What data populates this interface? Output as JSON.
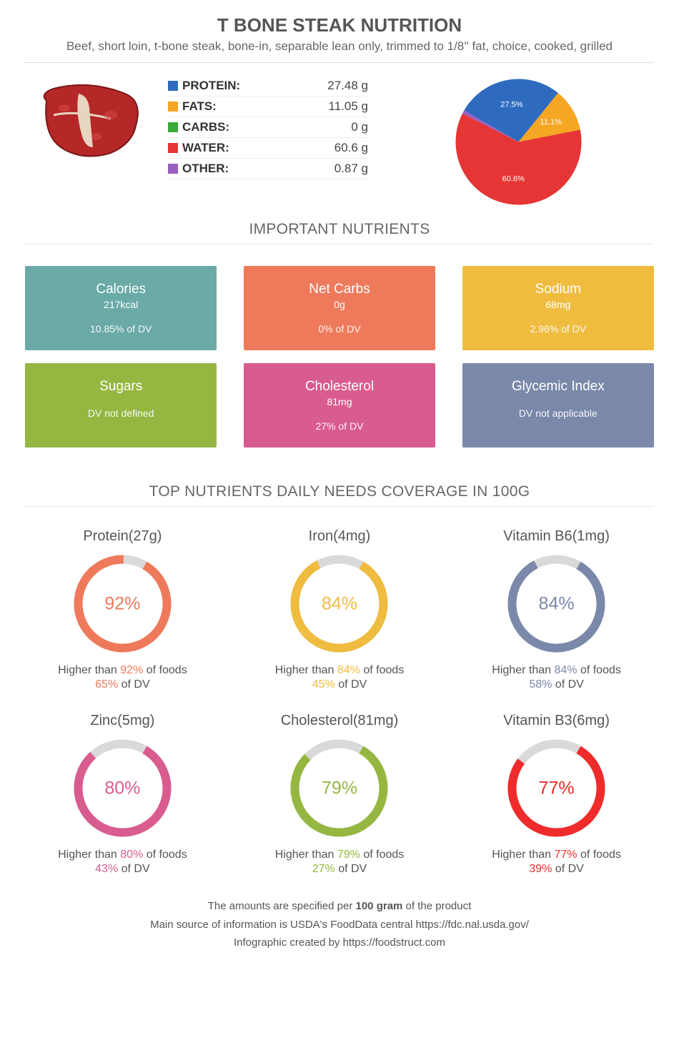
{
  "header": {
    "title": "T BONE STEAK NUTRITION",
    "subtitle": "Beef, short loin, t-bone steak, bone-in, separable lean only, trimmed to 1/8'' fat, choice, cooked, grilled"
  },
  "macros": [
    {
      "label": "PROTEIN:",
      "value": "27.48 g",
      "color": "#2e6bbf",
      "pct": 27.5
    },
    {
      "label": "FATS:",
      "value": "11.05 g",
      "color": "#f5a623",
      "pct": 11.1
    },
    {
      "label": "CARBS:",
      "value": "0 g",
      "color": "#3aa83a",
      "pct": 0
    },
    {
      "label": "WATER:",
      "value": "60.6 g",
      "color": "#e53535",
      "pct": 60.6
    },
    {
      "label": "OTHER:",
      "value": "0.87 g",
      "color": "#9b5fc0",
      "pct": 0.87
    }
  ],
  "pie_labels": [
    {
      "text": "27.5%",
      "color": "#ffffff"
    },
    {
      "text": "11.1%",
      "color": "#ffffff"
    },
    {
      "text": "60.6%",
      "color": "#ffffff"
    }
  ],
  "sections": {
    "important": "IMPORTANT NUTRIENTS",
    "top_nutrients": "TOP NUTRIENTS DAILY NEEDS COVERAGE IN 100G"
  },
  "cards": [
    {
      "title": "Calories",
      "value": "217kcal",
      "dv": "10.85% of DV",
      "color": "#6aaaa7"
    },
    {
      "title": "Net Carbs",
      "value": "0g",
      "dv": "0% of DV",
      "color": "#ee7a5b"
    },
    {
      "title": "Sodium",
      "value": "68mg",
      "dv": "2.96% of DV",
      "color": "#efbc3f"
    },
    {
      "title": "Sugars",
      "value": "",
      "dv": "DV not defined",
      "color": "#95b742"
    },
    {
      "title": "Cholesterol",
      "value": "81mg",
      "dv": "27% of DV",
      "color": "#d95c8f"
    },
    {
      "title": "Glycemic Index",
      "value": "",
      "dv": "DV not applicable",
      "color": "#7a88aa"
    }
  ],
  "donuts": [
    {
      "title": "Protein(27g)",
      "pct": 92,
      "color": "#ee7a5b",
      "higher": "92%",
      "dv": "65%"
    },
    {
      "title": "Iron(4mg)",
      "pct": 84,
      "color": "#efbc3f",
      "higher": "84%",
      "dv": "45%"
    },
    {
      "title": "Vitamin B6(1mg)",
      "pct": 84,
      "color": "#7a88aa",
      "higher": "84%",
      "dv": "58%"
    },
    {
      "title": "Zinc(5mg)",
      "pct": 80,
      "color": "#d95c8f",
      "higher": "80%",
      "dv": "43%"
    },
    {
      "title": "Cholesterol(81mg)",
      "pct": 79,
      "color": "#95b742",
      "higher": "79%",
      "dv": "27%"
    },
    {
      "title": "Vitamin B3(6mg)",
      "pct": 77,
      "color": "#ef2b2b",
      "higher": "77%",
      "dv": "39%"
    }
  ],
  "donut_bg": "#d9d9d9",
  "footer": {
    "line1_pre": "The amounts are specified per ",
    "line1_bold": "100 gram",
    "line1_post": " of the product",
    "line2": "Main source of information is USDA's FoodData central https://fdc.nal.usda.gov/",
    "line3": "Infographic created by https://foodstruct.com"
  }
}
